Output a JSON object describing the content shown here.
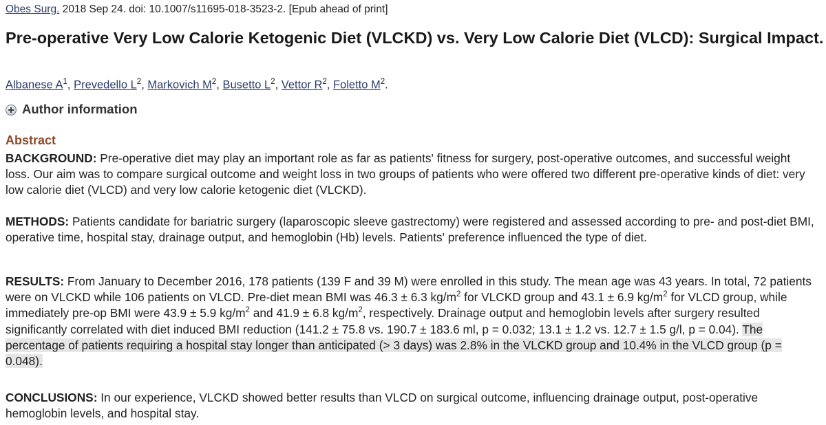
{
  "citation": {
    "journal": "Obes Surg.",
    "rest": " 2018 Sep 24. doi: 10.1007/s11695-018-3523-2. [Epub ahead of print]"
  },
  "title": "Pre-operative Very Low Calorie Ketogenic Diet (VLCKD) vs. Very Low Calorie Diet (VLCD): Surgical Impact.",
  "authors": [
    {
      "name": "Albanese A",
      "sup": "1",
      "sep": ", "
    },
    {
      "name": "Prevedello L",
      "sup": "2",
      "sep": ", "
    },
    {
      "name": "Markovich M",
      "sup": "2",
      "sep": ", "
    },
    {
      "name": "Busetto L",
      "sup": "2",
      "sep": ", "
    },
    {
      "name": "Vettor R",
      "sup": "2",
      "sep": ", "
    },
    {
      "name": "Foletto M",
      "sup": "2",
      "sep": "."
    }
  ],
  "author_info_label": "Author information",
  "abstract_heading": "Abstract",
  "background": {
    "label": "BACKGROUND:",
    "text": " Pre-operative diet may play an important role as far as patients' fitness for surgery, post-operative outcomes, and successful weight loss. Our aim was to compare surgical outcome and weight loss in two groups of patients who were offered two different pre-operative kinds of diet: very low calorie diet (VLCD) and very low calorie ketogenic diet (VLCKD)."
  },
  "methods": {
    "label": "METHODS:",
    "text": " Patients candidate for bariatric surgery (laparoscopic sleeve gastrectomy) were registered and assessed according to pre- and post-diet BMI, operative time, hospital stay, drainage output, and hemoglobin (Hb) levels. Patients' preference influenced the type of diet."
  },
  "results": {
    "label": "RESULTS:",
    "t1": " From January to December 2016, 178 patients (139 F and 39 M) were enrolled in this study. The mean age was 43 years. In total, 72 patients were on VLCKD while 106 patients on VLCD. Pre-diet mean BMI was 46.3 ± 6.3 kg/m",
    "s1": "2",
    "t2": " for VLCKD group and 43.1 ± 6.9 kg/m",
    "s2": "2",
    "t3": " for VLCD group, while immediately pre-op BMI were 43.9 ± 5.9 kg/m",
    "s3": "2",
    "t4": " and 41.9 ± 6.8 kg/m",
    "s4": "2",
    "t5": ", respectively. Drainage output and hemoglobin levels after surgery resulted significantly correlated with diet induced BMI reduction (141.2 ± 75.8 vs. 190.7 ± 183.6 ml, p = 0.032; 13.1 ± 1.2 vs. 12.7 ± 1.5 g/l, p = 0.04). ",
    "highlight": "The percentage of patients requiring a hospital stay longer than anticipated (> 3 days) was 2.8% in the VLCKD group and 10.4% in the VLCD group (p = 0.048)."
  },
  "conclusions": {
    "label": "CONCLUSIONS:",
    "text": " In our experience, VLCKD showed better results than VLCD on surgical outcome, influencing drainage output, post-operative hemoglobin levels, and hospital stay."
  },
  "colors": {
    "link": "#2a3c6b",
    "abstract_heading": "#8b4b2b",
    "highlight": "#e6e6e6"
  }
}
